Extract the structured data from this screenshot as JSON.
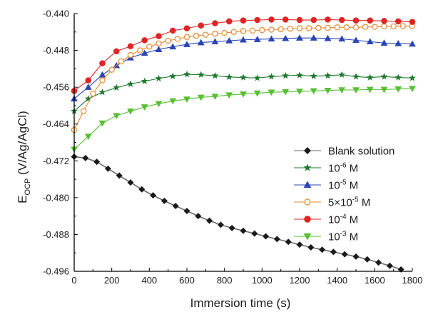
{
  "chart_data": {
    "type": "line",
    "xlabel": "Immersion time (s)",
    "ylabel_main": "E",
    "ylabel_sub": "OCP",
    "ylabel_rest": " (V/Ag/AgCl)",
    "xlim": [
      0,
      1800
    ],
    "ylim": [
      -0.496,
      -0.44
    ],
    "x_ticks": [
      0,
      200,
      400,
      600,
      800,
      1000,
      1200,
      1400,
      1600,
      1800
    ],
    "y_ticks": [
      -0.44,
      -0.448,
      -0.456,
      -0.464,
      -0.472,
      -0.48,
      -0.488,
      -0.496
    ],
    "x_tick_labels": [
      "0",
      "200",
      "400",
      "600",
      "800",
      "1000",
      "1200",
      "1400",
      "1600",
      "1800"
    ],
    "y_tick_labels": [
      "-0.440",
      "-0.448",
      "-0.456",
      "-0.464",
      "-0.472",
      "-0.480",
      "-0.488",
      "-0.496"
    ],
    "legend_placement": "center-right",
    "series": [
      {
        "label_main": "Blank solution",
        "label_sup": "",
        "label_after": "",
        "color": "#6b6b6b",
        "marker_color": "#1a1a1a",
        "marker": "diamond",
        "x": [
          0,
          60,
          120,
          180,
          240,
          300,
          360,
          420,
          480,
          540,
          600,
          660,
          720,
          780,
          840,
          900,
          960,
          1020,
          1080,
          1140,
          1200,
          1260,
          1320,
          1380,
          1440,
          1500,
          1560,
          1620,
          1680,
          1740
        ],
        "y": [
          -0.4711,
          -0.4714,
          -0.4722,
          -0.4737,
          -0.4752,
          -0.4767,
          -0.4782,
          -0.4795,
          -0.4807,
          -0.4818,
          -0.4829,
          -0.484,
          -0.485,
          -0.4859,
          -0.4866,
          -0.4872,
          -0.4878,
          -0.4884,
          -0.489,
          -0.4896,
          -0.4902,
          -0.4908,
          -0.4913,
          -0.4918,
          -0.4923,
          -0.4928,
          -0.4934,
          -0.4941,
          -0.4948,
          -0.4956
        ]
      },
      {
        "label_main": "10",
        "label_sup": "-6",
        "label_after": " M",
        "color": "#1f7a2e",
        "marker_color": "#1f7a2e",
        "marker": "star",
        "x": [
          0,
          75,
          150,
          225,
          300,
          375,
          450,
          525,
          600,
          675,
          750,
          825,
          900,
          975,
          1050,
          1125,
          1200,
          1275,
          1350,
          1425,
          1500,
          1575,
          1650,
          1725,
          1800
        ],
        "y": [
          -0.4612,
          -0.4585,
          -0.4571,
          -0.4561,
          -0.4553,
          -0.4547,
          -0.4541,
          -0.4536,
          -0.4532,
          -0.4533,
          -0.4535,
          -0.4538,
          -0.4539,
          -0.454,
          -0.4537,
          -0.4535,
          -0.4534,
          -0.4536,
          -0.4535,
          -0.4533,
          -0.4537,
          -0.4539,
          -0.4537,
          -0.4539,
          -0.454
        ]
      },
      {
        "label_main": "10",
        "label_sup": "-5",
        "label_after": " M",
        "color": "#2a46b4",
        "marker_color": "#2a46b4",
        "marker": "triangle-up",
        "x": [
          0,
          75,
          150,
          225,
          300,
          375,
          450,
          525,
          600,
          675,
          750,
          825,
          900,
          975,
          1050,
          1125,
          1200,
          1275,
          1350,
          1425,
          1500,
          1575,
          1650,
          1725,
          1800
        ],
        "y": [
          -0.4585,
          -0.456,
          -0.4533,
          -0.4513,
          -0.4496,
          -0.4486,
          -0.4478,
          -0.4472,
          -0.4467,
          -0.4463,
          -0.4461,
          -0.4459,
          -0.4457,
          -0.4456,
          -0.4455,
          -0.4454,
          -0.4453,
          -0.4453,
          -0.4454,
          -0.4455,
          -0.4458,
          -0.4461,
          -0.4464,
          -0.4465,
          -0.4466
        ]
      },
      {
        "label_main": "5×10",
        "label_sup": "-5",
        "label_after": " M",
        "color": "#e9892e",
        "marker_color": "#e9892e",
        "marker": "circle-open",
        "x": [
          0,
          50,
          100,
          150,
          200,
          250,
          300,
          350,
          400,
          450,
          500,
          550,
          600,
          650,
          700,
          750,
          800,
          850,
          900,
          950,
          1000,
          1050,
          1100,
          1150,
          1200,
          1250,
          1300,
          1350,
          1400,
          1450,
          1500,
          1550,
          1600,
          1650,
          1700,
          1750,
          1800
        ],
        "y": [
          -0.4653,
          -0.4612,
          -0.4574,
          -0.4545,
          -0.4522,
          -0.4504,
          -0.449,
          -0.448,
          -0.4472,
          -0.4465,
          -0.4459,
          -0.4455,
          -0.4451,
          -0.4448,
          -0.4446,
          -0.4444,
          -0.4442,
          -0.444,
          -0.4438,
          -0.4437,
          -0.4436,
          -0.4435,
          -0.4434,
          -0.4433,
          -0.4432,
          -0.4432,
          -0.4431,
          -0.4431,
          -0.443,
          -0.443,
          -0.443,
          -0.4429,
          -0.4429,
          -0.4428,
          -0.4428,
          -0.4427,
          -0.4427
        ]
      },
      {
        "label_main": "10",
        "label_sup": "-4",
        "label_after": " M",
        "color": "#e02424",
        "marker_color": "#e02424",
        "marker": "circle",
        "x": [
          0,
          75,
          150,
          225,
          300,
          375,
          450,
          525,
          600,
          675,
          750,
          825,
          900,
          975,
          1050,
          1125,
          1200,
          1275,
          1350,
          1425,
          1500,
          1575,
          1650,
          1725,
          1800
        ],
        "y": [
          -0.4568,
          -0.4545,
          -0.4508,
          -0.4482,
          -0.4471,
          -0.4458,
          -0.4449,
          -0.4437,
          -0.4432,
          -0.4426,
          -0.4421,
          -0.4417,
          -0.4415,
          -0.4414,
          -0.4413,
          -0.4413,
          -0.4414,
          -0.4414,
          -0.4413,
          -0.4414,
          -0.4415,
          -0.4415,
          -0.4416,
          -0.4417,
          -0.4418
        ]
      },
      {
        "label_main": "10",
        "label_sup": "-3",
        "label_after": " M",
        "color": "#58bf33",
        "marker_color": "#58bf33",
        "marker": "triangle-down",
        "x": [
          0,
          75,
          150,
          225,
          300,
          375,
          450,
          525,
          600,
          675,
          750,
          825,
          900,
          975,
          1050,
          1125,
          1200,
          1275,
          1350,
          1425,
          1500,
          1575,
          1650,
          1725,
          1800
        ],
        "y": [
          -0.4695,
          -0.4667,
          -0.4638,
          -0.4622,
          -0.4612,
          -0.4603,
          -0.4596,
          -0.459,
          -0.4586,
          -0.4582,
          -0.458,
          -0.4577,
          -0.4575,
          -0.4573,
          -0.4571,
          -0.457,
          -0.4569,
          -0.4568,
          -0.4567,
          -0.4566,
          -0.4566,
          -0.4565,
          -0.4565,
          -0.4564,
          -0.4563
        ]
      }
    ]
  }
}
